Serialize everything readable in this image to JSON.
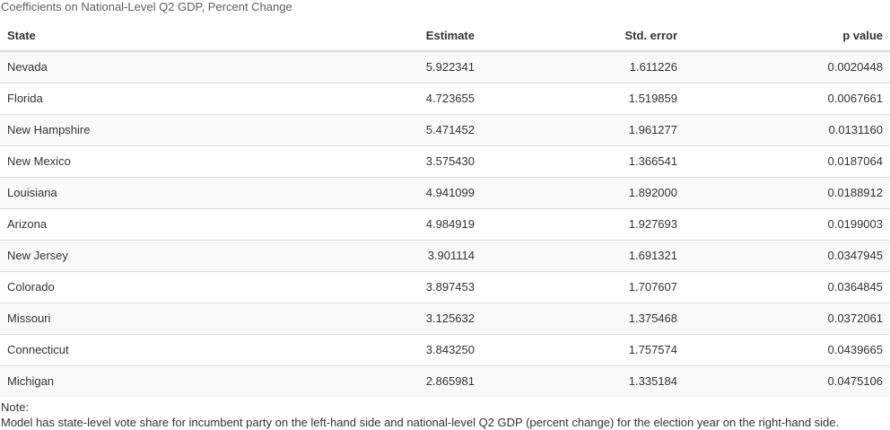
{
  "caption": "Coefficients on National-Level Q2 GDP, Percent Change",
  "columns": {
    "state": "State",
    "estimate": "Estimate",
    "std_error": "Std. error",
    "p_value": "p value"
  },
  "rows": [
    {
      "state": "Nevada",
      "estimate": "5.922341",
      "std_error": "1.611226",
      "p_value": "0.0020448"
    },
    {
      "state": "Florida",
      "estimate": "4.723655",
      "std_error": "1.519859",
      "p_value": "0.0067661"
    },
    {
      "state": "New Hampshire",
      "estimate": "5.471452",
      "std_error": "1.961277",
      "p_value": "0.0131160"
    },
    {
      "state": "New Mexico",
      "estimate": "3.575430",
      "std_error": "1.366541",
      "p_value": "0.0187064"
    },
    {
      "state": "Louisiana",
      "estimate": "4.941099",
      "std_error": "1.892000",
      "p_value": "0.0188912"
    },
    {
      "state": "Arizona",
      "estimate": "4.984919",
      "std_error": "1.927693",
      "p_value": "0.0199003"
    },
    {
      "state": "New Jersey",
      "estimate": "3.901114",
      "std_error": "1.691321",
      "p_value": "0.0347945"
    },
    {
      "state": "Colorado",
      "estimate": "3.897453",
      "std_error": "1.707607",
      "p_value": "0.0364845"
    },
    {
      "state": "Missouri",
      "estimate": "3.125632",
      "std_error": "1.375468",
      "p_value": "0.0372061"
    },
    {
      "state": "Connecticut",
      "estimate": "3.843250",
      "std_error": "1.757574",
      "p_value": "0.0439665"
    },
    {
      "state": "Michigan",
      "estimate": "2.865981",
      "std_error": "1.335184",
      "p_value": "0.0475106"
    }
  ],
  "notes": {
    "label": "Note:",
    "text": "Model has state-level vote share for incumbent party on the left-hand side and national-level Q2 GDP (percent change) for the election year on the right-hand side."
  },
  "colors": {
    "stripe": "#f9f9f9",
    "border": "#dddddd",
    "text": "#333333",
    "caption": "#5e5e5e"
  }
}
